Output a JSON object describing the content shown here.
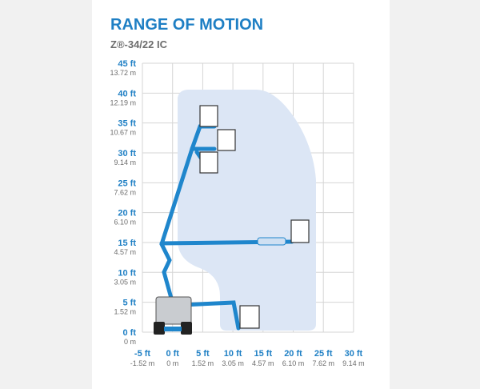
{
  "title": "RANGE OF MOTION",
  "subtitle": "Z®-34/22 IC",
  "x_ticks": [
    {
      "ft": "-5 ft",
      "m": "-1.52 m"
    },
    {
      "ft": "0 ft",
      "m": "0 m"
    },
    {
      "ft": "5 ft",
      "m": "1.52 m"
    },
    {
      "ft": "10 ft",
      "m": "3.05 m"
    },
    {
      "ft": "15 ft",
      "m": "4.57 m"
    },
    {
      "ft": "20 ft",
      "m": "6.10 m"
    },
    {
      "ft": "25 ft",
      "m": "7.62 m"
    },
    {
      "ft": "30 ft",
      "m": "9.14 m"
    }
  ],
  "y_ticks": [
    {
      "ft": "45 ft",
      "m": "13.72 m"
    },
    {
      "ft": "40 ft",
      "m": "12.19 m"
    },
    {
      "ft": "35 ft",
      "m": "10.67 m"
    },
    {
      "ft": "30 ft",
      "m": "9.14 m"
    },
    {
      "ft": "25 ft",
      "m": "7.62 m"
    },
    {
      "ft": "20 ft",
      "m": "6.10 m"
    },
    {
      "ft": "15 ft",
      "m": "4.57 m"
    },
    {
      "ft": "10 ft",
      "m": "3.05 m"
    },
    {
      "ft": "5 ft",
      "m": "1.52 m"
    },
    {
      "ft": "0 ft",
      "m": "0 m"
    }
  ]
}
